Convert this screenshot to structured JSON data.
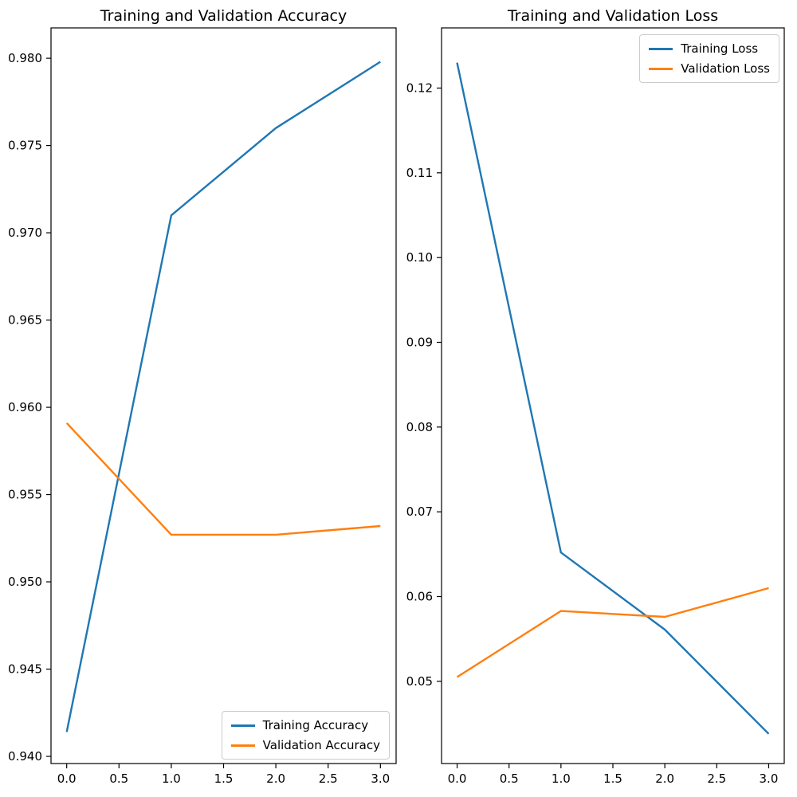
{
  "figure": {
    "background_color": "#ffffff",
    "spine_color": "#000000",
    "tick_label_color": "#000000"
  },
  "chart_data": [
    {
      "type": "line",
      "title": "Training and Validation Accuracy",
      "x": [
        0,
        1,
        2,
        3
      ],
      "series": [
        {
          "name": "Training Accuracy",
          "color": "#1f77b4",
          "values": [
            0.9414,
            0.971,
            0.976,
            0.9798
          ]
        },
        {
          "name": "Validation Accuracy",
          "color": "#ff7f0e",
          "values": [
            0.9591,
            0.9527,
            0.9527,
            0.9532
          ]
        }
      ],
      "xlabel": "",
      "ylabel": "",
      "xlim": [
        -0.15,
        3.15
      ],
      "ylim": [
        0.93959,
        0.98174
      ],
      "xticks": [
        0.0,
        0.5,
        1.0,
        1.5,
        2.0,
        2.5,
        3.0
      ],
      "yticks": [
        0.94,
        0.945,
        0.95,
        0.955,
        0.96,
        0.965,
        0.97,
        0.975,
        0.98
      ],
      "xtick_decimals": 1,
      "ytick_decimals": 3,
      "grid": false,
      "legend_position": "lower right"
    },
    {
      "type": "line",
      "title": "Training and Validation Loss",
      "x": [
        0,
        1,
        2,
        3
      ],
      "series": [
        {
          "name": "Training Loss",
          "color": "#1f77b4",
          "values": [
            0.123,
            0.0652,
            0.0561,
            0.0438
          ]
        },
        {
          "name": "Validation Loss",
          "color": "#ff7f0e",
          "values": [
            0.0505,
            0.0583,
            0.0576,
            0.061
          ]
        }
      ],
      "xlabel": "",
      "ylabel": "",
      "xlim": [
        -0.15,
        3.15
      ],
      "ylim": [
        0.0403,
        0.1271
      ],
      "xticks": [
        0.0,
        0.5,
        1.0,
        1.5,
        2.0,
        2.5,
        3.0
      ],
      "yticks": [
        0.05,
        0.06,
        0.07,
        0.08,
        0.09,
        0.1,
        0.11,
        0.12
      ],
      "xtick_decimals": 1,
      "ytick_decimals": 2,
      "grid": false,
      "legend_position": "upper right"
    }
  ]
}
